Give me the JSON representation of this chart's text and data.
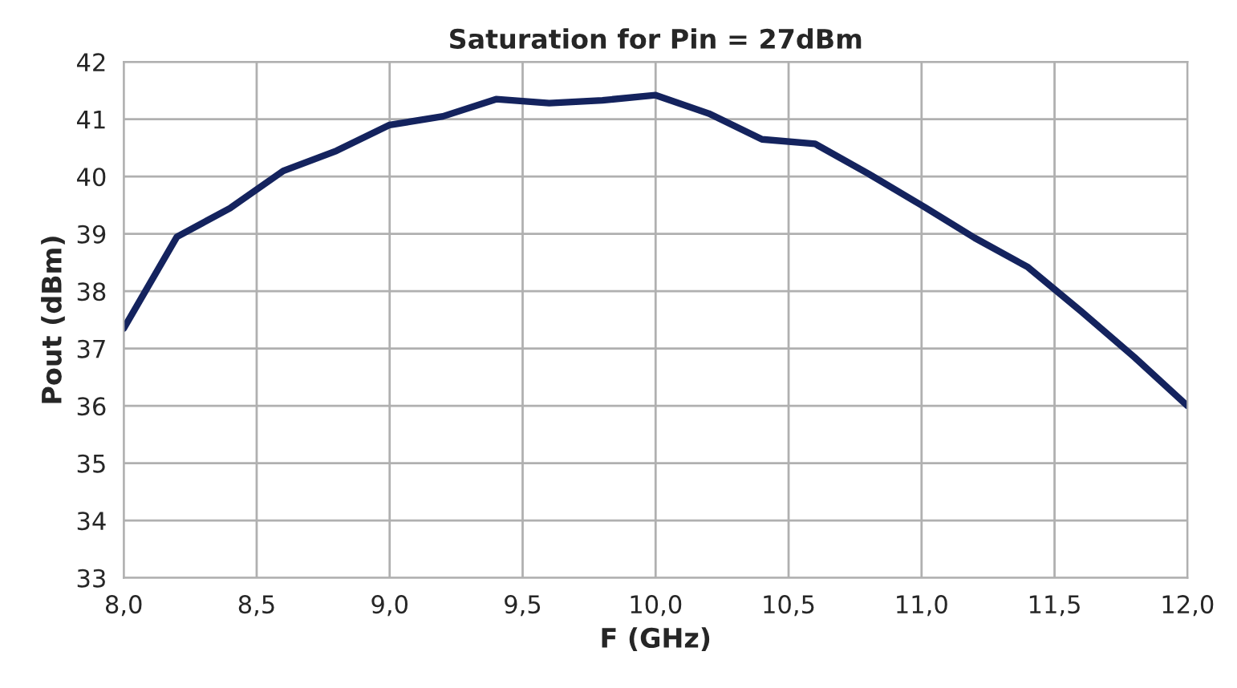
{
  "chart_data": {
    "type": "line",
    "title": "Saturation for Pin = 27dBm",
    "xlabel": "F (GHz)",
    "ylabel": "Pout (dBm)",
    "x": [
      8.0,
      8.2,
      8.4,
      8.6,
      8.8,
      9.0,
      9.2,
      9.4,
      9.6,
      9.8,
      10.0,
      10.2,
      10.4,
      10.6,
      10.8,
      11.0,
      11.2,
      11.4,
      11.6,
      11.8,
      12.0
    ],
    "series": [
      {
        "color": "#14235e",
        "values": [
          37.35,
          38.95,
          39.45,
          40.1,
          40.45,
          40.9,
          41.05,
          41.35,
          41.28,
          41.33,
          41.42,
          41.1,
          40.65,
          40.57,
          40.05,
          39.5,
          38.93,
          38.42,
          37.65,
          36.85,
          36.0
        ]
      }
    ],
    "xlim": [
      8.0,
      12.0
    ],
    "xticks": [
      {
        "value": 8.0,
        "label": "8,0"
      },
      {
        "value": 8.5,
        "label": "8,5"
      },
      {
        "value": 9.0,
        "label": "9,0"
      },
      {
        "value": 9.5,
        "label": "9,5"
      },
      {
        "value": 10.0,
        "label": "10,0"
      },
      {
        "value": 10.5,
        "label": "10,5"
      },
      {
        "value": 11.0,
        "label": "11,0"
      },
      {
        "value": 11.5,
        "label": "11,5"
      },
      {
        "value": 12.0,
        "label": "12,0"
      }
    ],
    "ylim": [
      33,
      42
    ],
    "yticks": [
      33,
      34,
      35,
      36,
      37,
      38,
      39,
      40,
      41,
      42
    ],
    "grid": true,
    "legend": false,
    "marker": "none",
    "line_style": "solid"
  }
}
